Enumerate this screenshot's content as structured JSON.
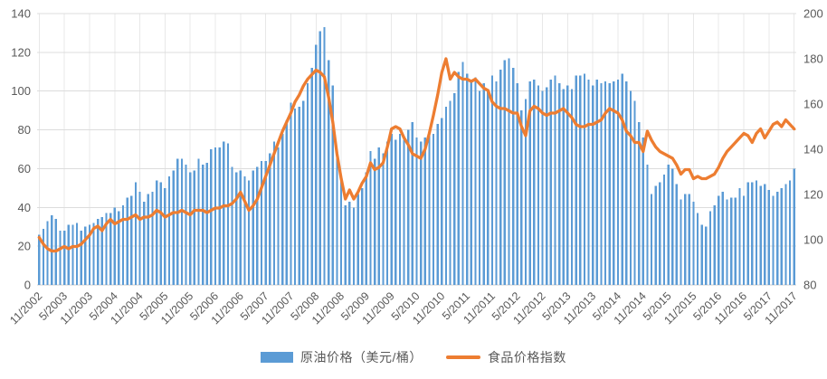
{
  "chart_data": {
    "type": "combo-bar-line",
    "x_start": "11/2002",
    "x_end": "11/2017",
    "x_frequency": "monthly",
    "x_tick_every": 6,
    "x_tick_labels": [
      "11/2002",
      "5/2003",
      "11/2003",
      "5/2004",
      "11/2004",
      "5/2005",
      "11/2005",
      "5/2006",
      "11/2006",
      "5/2007",
      "11/2007",
      "5/2008",
      "11/2008",
      "5/2009",
      "11/2009",
      "5/2010",
      "11/2010",
      "5/2011",
      "11/2011",
      "5/2012",
      "11/2012",
      "5/2013",
      "11/2013",
      "5/2014",
      "11/2014",
      "5/2015",
      "11/2015",
      "5/2016",
      "11/2016",
      "5/2017",
      "11/2017"
    ],
    "left_axis": {
      "min": 0,
      "max": 140,
      "step": 20,
      "tick_labels": [
        "0",
        "20",
        "40",
        "60",
        "80",
        "100",
        "120",
        "140"
      ]
    },
    "right_axis": {
      "min": 80,
      "max": 200,
      "step": 20,
      "tick_labels": [
        "80",
        "100",
        "120",
        "140",
        "160",
        "180",
        "200"
      ]
    },
    "grid": true,
    "legend_position": "bottom",
    "colors": {
      "grid": "#DCDCDC",
      "grid_vertical": "#E8E8E8",
      "axis_line": "#CFCFCF",
      "text": "#595959"
    },
    "series": [
      {
        "name": "原油价格（美元/桶）",
        "type": "bar",
        "axis": "left",
        "color": "#5B9BD5",
        "values": [
          26,
          29,
          33,
          36,
          34,
          28,
          28,
          31,
          31,
          32,
          28,
          30,
          31,
          32,
          34,
          35,
          37,
          37,
          40,
          38,
          41,
          45,
          46,
          53,
          48,
          43,
          47,
          48,
          54,
          53,
          50,
          56,
          59,
          65,
          65,
          62,
          58,
          59,
          65,
          62,
          63,
          70,
          71,
          71,
          74,
          73,
          61,
          58,
          59,
          56,
          54,
          59,
          61,
          64,
          64,
          68,
          74,
          71,
          78,
          85,
          94,
          91,
          92,
          95,
          104,
          112,
          124,
          131,
          133,
          116,
          103,
          68,
          55,
          41,
          43,
          40,
          47,
          50,
          58,
          69,
          65,
          71,
          68,
          74,
          78,
          75,
          78,
          75,
          80,
          84,
          76,
          74,
          76,
          77,
          78,
          83,
          86,
          92,
          95,
          99,
          110,
          115,
          109,
          105,
          107,
          100,
          104,
          101,
          108,
          105,
          111,
          116,
          117,
          112,
          104,
          90,
          96,
          105,
          106,
          103,
          100,
          102,
          106,
          108,
          104,
          101,
          103,
          101,
          108,
          108,
          109,
          106,
          103,
          106,
          104,
          105,
          104,
          105,
          106,
          109,
          105,
          100,
          95,
          84,
          76,
          62,
          47,
          51,
          53,
          57,
          62,
          60,
          52,
          44,
          47,
          47,
          43,
          37,
          31,
          30,
          38,
          41,
          46,
          48,
          44,
          45,
          45,
          50,
          46,
          53,
          53,
          54,
          51,
          52,
          49,
          46,
          48,
          50,
          52,
          54,
          60
        ]
      },
      {
        "name": "食品价格指数",
        "type": "line",
        "axis": "right",
        "color": "#ED7D31",
        "values": [
          101,
          98,
          96,
          95,
          95,
          96,
          97,
          96,
          97,
          97,
          98,
          100,
          102,
          105,
          106,
          104,
          107,
          109,
          107,
          108,
          109,
          109,
          110,
          111,
          109,
          110,
          110,
          111,
          113,
          112,
          110,
          111,
          112,
          112,
          113,
          112,
          111,
          113,
          113,
          113,
          112,
          113,
          114,
          114,
          115,
          115,
          116,
          118,
          121,
          117,
          113,
          115,
          118,
          123,
          128,
          133,
          138,
          143,
          148,
          152,
          156,
          161,
          164,
          168,
          171,
          173,
          175,
          174,
          172,
          163,
          152,
          138,
          127,
          118,
          122,
          118,
          121,
          125,
          128,
          134,
          131,
          132,
          134,
          141,
          149,
          150,
          149,
          145,
          142,
          138,
          137,
          136,
          140,
          147,
          155,
          164,
          174,
          180,
          171,
          174,
          172,
          171,
          171,
          170,
          171,
          169,
          167,
          166,
          161,
          159,
          158,
          158,
          157,
          156,
          156,
          150,
          146,
          157,
          159,
          158,
          156,
          155,
          156,
          156,
          157,
          158,
          156,
          154,
          151,
          150,
          150,
          151,
          151,
          152,
          153,
          156,
          158,
          157,
          156,
          153,
          148,
          146,
          143,
          143,
          139,
          148,
          144,
          141,
          139,
          138,
          137,
          136,
          133,
          129,
          131,
          131,
          127,
          128,
          127,
          127,
          128,
          129,
          132,
          136,
          139,
          141,
          143,
          145,
          147,
          146,
          143,
          147,
          149,
          145,
          148,
          151,
          152,
          150,
          153,
          151,
          149
        ]
      }
    ]
  },
  "legend": {
    "items": [
      {
        "label": "原油价格（美元/桶）",
        "swatch": "bar",
        "color": "#5B9BD5"
      },
      {
        "label": "食品价格指数",
        "swatch": "line",
        "color": "#ED7D31"
      }
    ]
  }
}
